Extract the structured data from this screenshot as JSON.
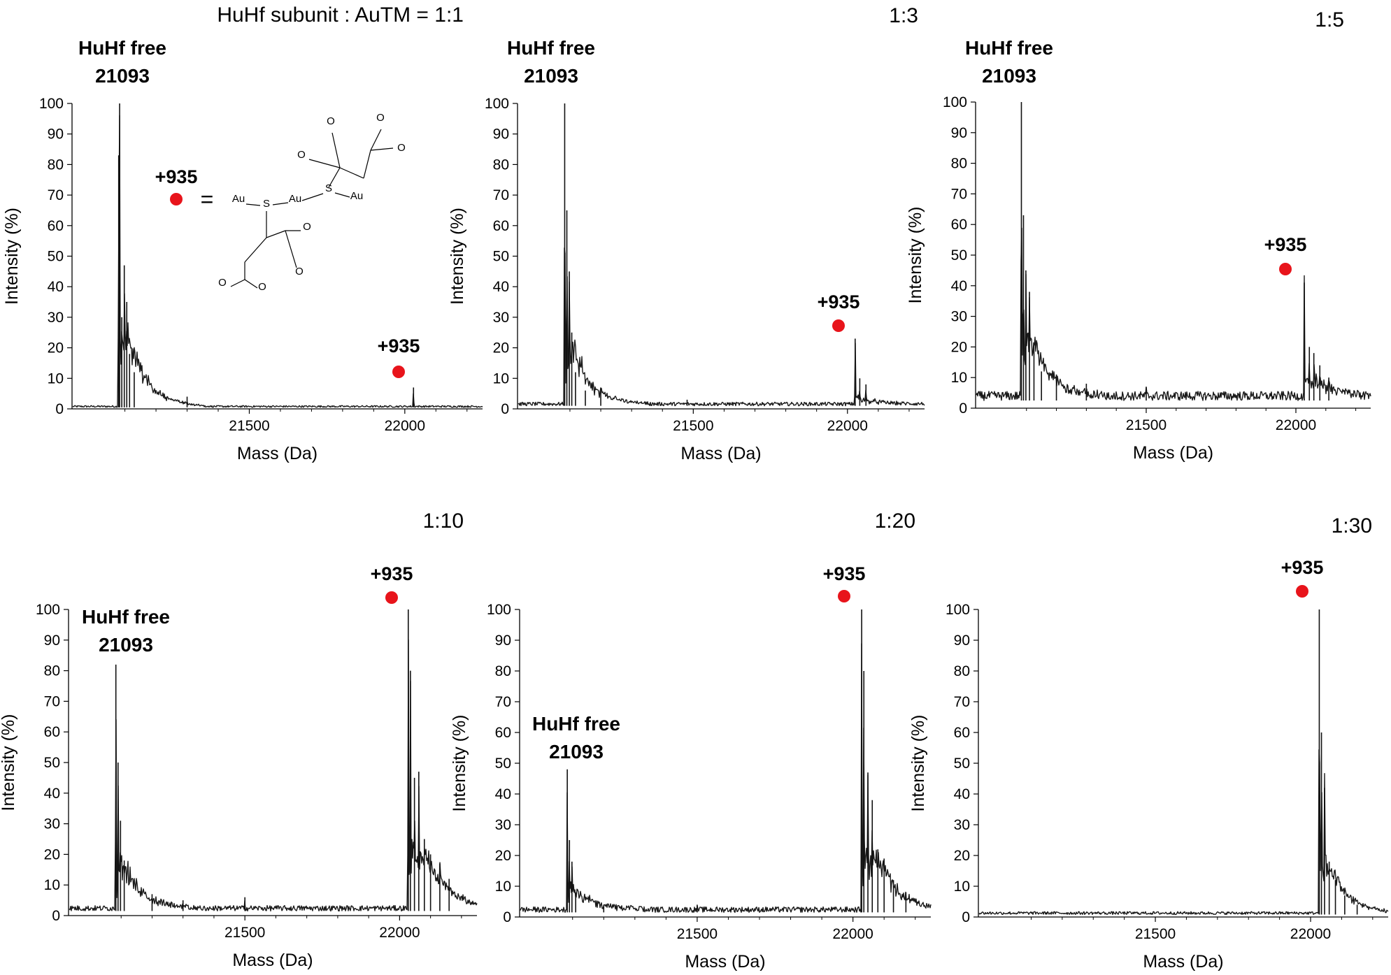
{
  "figure": {
    "marker_color": "#e8141b",
    "structure": {
      "equals": "=",
      "atoms": {
        "au1": "Au",
        "s1": "S",
        "au2": "Au",
        "s2": "S",
        "au3": "Au",
        "o1": "O",
        "o2": "O",
        "o3": "O",
        "o4": "O",
        "o5": "O",
        "o6": "O",
        "o7": "O",
        "o8": "O"
      }
    }
  },
  "chart_data": [
    {
      "type": "line",
      "ratio_label": "HuHf subunit : AuTM = 1:1",
      "xlabel": "Mass (Da)",
      "ylabel": "Intensity (%)",
      "xlim": [
        20930,
        22250
      ],
      "ylim": [
        0,
        100
      ],
      "xticks": [
        "21500",
        "22000"
      ],
      "yticks": [
        "0",
        "10",
        "20",
        "30",
        "40",
        "50",
        "60",
        "70",
        "80",
        "90",
        "100"
      ],
      "free_label": "HuHf free",
      "free_mass": "21093",
      "adduct_label": "+935",
      "free_peak": 100,
      "adduct_peak": 7,
      "baseline": 0.5,
      "peaks": [
        [
          21080,
          83
        ],
        [
          21083,
          100
        ],
        [
          21090,
          30
        ],
        [
          21098,
          47
        ],
        [
          21106,
          35
        ],
        [
          21115,
          18
        ],
        [
          21130,
          12
        ],
        [
          21300,
          4
        ],
        [
          22028,
          7
        ]
      ]
    },
    {
      "type": "line",
      "ratio_label": "1:3",
      "xlabel": "Mass (Da)",
      "ylabel": "Intensity (%)",
      "xlim": [
        20930,
        22250
      ],
      "ylim": [
        0,
        100
      ],
      "xticks": [
        "21500",
        "22000"
      ],
      "yticks": [
        "0",
        "10",
        "20",
        "30",
        "40",
        "50",
        "60",
        "70",
        "80",
        "90",
        "100"
      ],
      "free_label": "HuHf free",
      "free_mass": "21093",
      "adduct_label": "+935",
      "free_peak": 100,
      "adduct_peak": 23,
      "baseline": 1,
      "peaks": [
        [
          21083,
          100
        ],
        [
          21090,
          65
        ],
        [
          21098,
          45
        ],
        [
          21106,
          25
        ],
        [
          21118,
          12
        ],
        [
          21150,
          6
        ],
        [
          21200,
          7
        ],
        [
          21480,
          3
        ],
        [
          22025,
          23
        ],
        [
          22040,
          10
        ],
        [
          22060,
          8
        ]
      ]
    },
    {
      "type": "line",
      "ratio_label": "1:5",
      "xlabel": "Mass (Da)",
      "ylabel": "Intensity (%)",
      "xlim": [
        20930,
        22250
      ],
      "ylim": [
        0,
        100
      ],
      "xticks": [
        "21500",
        "22000"
      ],
      "yticks": [
        "0",
        "10",
        "20",
        "30",
        "40",
        "50",
        "60",
        "70",
        "80",
        "90",
        "100"
      ],
      "free_label": "HuHf free",
      "free_mass": "21093",
      "adduct_label": "+935",
      "free_peak": 100,
      "adduct_peak": 41,
      "baseline": 2.5,
      "peaks": [
        [
          21083,
          100
        ],
        [
          21090,
          63
        ],
        [
          21098,
          45
        ],
        [
          21110,
          38
        ],
        [
          21125,
          21
        ],
        [
          21150,
          12
        ],
        [
          21200,
          11
        ],
        [
          21300,
          8
        ],
        [
          21500,
          7
        ],
        [
          22028,
          41
        ],
        [
          22045,
          20
        ],
        [
          22060,
          18
        ],
        [
          22080,
          14
        ],
        [
          22110,
          10
        ]
      ]
    },
    {
      "type": "line",
      "ratio_label": "1:10",
      "xlabel": "Mass (Da)",
      "ylabel": "Intensity (%)",
      "xlim": [
        20930,
        22250
      ],
      "ylim": [
        0,
        100
      ],
      "xticks": [
        "21500",
        "22000"
      ],
      "yticks": [
        "0",
        "10",
        "20",
        "30",
        "40",
        "50",
        "60",
        "70",
        "80",
        "90",
        "100"
      ],
      "free_label": "HuHf free",
      "free_mass": "21093",
      "adduct_label": "+935",
      "free_peak": 82,
      "adduct_peak": 100,
      "baseline": 1.5,
      "peaks": [
        [
          21083,
          82
        ],
        [
          21090,
          50
        ],
        [
          21098,
          31
        ],
        [
          21110,
          18
        ],
        [
          21200,
          7
        ],
        [
          21300,
          5
        ],
        [
          21500,
          6
        ],
        [
          22028,
          100
        ],
        [
          22035,
          80
        ],
        [
          22048,
          45
        ],
        [
          22062,
          47
        ],
        [
          22080,
          25
        ],
        [
          22100,
          20
        ],
        [
          22130,
          17
        ],
        [
          22160,
          12
        ]
      ]
    },
    {
      "type": "line",
      "ratio_label": "1:20",
      "xlabel": "Mass (Da)",
      "ylabel": "Intensity (%)",
      "xlim": [
        20930,
        22250
      ],
      "ylim": [
        0,
        100
      ],
      "xticks": [
        "21500",
        "22000"
      ],
      "yticks": [
        "0",
        "10",
        "20",
        "30",
        "40",
        "50",
        "60",
        "70",
        "80",
        "90",
        "100"
      ],
      "free_label": "HuHf free",
      "free_mass": "21093",
      "adduct_label": "+935",
      "free_peak": 48,
      "adduct_peak": 100,
      "baseline": 1.5,
      "peaks": [
        [
          21083,
          48
        ],
        [
          21090,
          25
        ],
        [
          21098,
          18
        ],
        [
          21110,
          8
        ],
        [
          21200,
          4
        ],
        [
          21500,
          4
        ],
        [
          22028,
          100
        ],
        [
          22035,
          80
        ],
        [
          22048,
          47
        ],
        [
          22062,
          38
        ],
        [
          22080,
          22
        ],
        [
          22100,
          19
        ],
        [
          22130,
          12
        ],
        [
          22170,
          8
        ]
      ]
    },
    {
      "type": "line",
      "ratio_label": "1:30",
      "xlabel": "Mass (Da)",
      "ylabel": "Intensity (%)",
      "xlim": [
        20930,
        22250
      ],
      "ylim": [
        0,
        100
      ],
      "xticks": [
        "21500",
        "22000"
      ],
      "yticks": [
        "0",
        "10",
        "20",
        "30",
        "40",
        "50",
        "60",
        "70",
        "80",
        "90",
        "100"
      ],
      "free_label": "",
      "free_mass": "",
      "adduct_label": "+935",
      "free_peak": 1,
      "adduct_peak": 100,
      "baseline": 0.8,
      "peaks": [
        [
          21150,
          1.5
        ],
        [
          21400,
          1
        ],
        [
          22028,
          100
        ],
        [
          22035,
          60
        ],
        [
          22045,
          42
        ],
        [
          22060,
          18
        ],
        [
          22080,
          12
        ],
        [
          22110,
          7
        ],
        [
          22150,
          4
        ]
      ]
    }
  ]
}
